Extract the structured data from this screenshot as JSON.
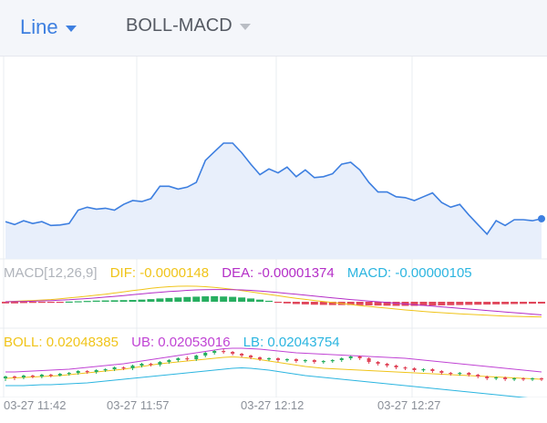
{
  "toolbar": {
    "chart_type": "Line",
    "indicator": "BOLL-MACD"
  },
  "colors": {
    "price_line": "#3d7fe0",
    "price_fill": "#e8effb",
    "dif": "#f0c419",
    "dea": "#b42ec7",
    "macd": "#2bb5e0",
    "up": "#27ae60",
    "down": "#e0475b",
    "ub": "#c043d4",
    "lb": "#2bb5e0",
    "boll": "#f0c419",
    "grid": "#e9ecf1",
    "label": "#8a8f98"
  },
  "macd_legend": {
    "name": "MACD[12,26,9]",
    "dif": "DIF: -0.0000148",
    "dea": "DEA: -0.00001374",
    "macd": "MACD: -0.00000105"
  },
  "boll_legend": {
    "boll": "BOLL: 0.02048385",
    "ub": "UB: 0.02053016",
    "lb": "LB: 0.02043754"
  },
  "x_labels": [
    "03-27 11:42",
    "03-27 11:57",
    "03-27 12:12",
    "03-27 12:27"
  ],
  "chart_data": {
    "type": "line",
    "x_ticks": [
      "03-27 11:42",
      "03-27 11:57",
      "03-27 12:12",
      "03-27 12:27"
    ],
    "price": [
      18,
      15,
      19,
      16,
      18,
      14,
      14.5,
      16,
      30,
      33,
      31,
      32,
      30,
      36,
      40,
      39,
      42,
      55,
      55,
      52,
      54,
      59,
      82,
      91,
      100,
      100,
      90,
      78,
      67,
      73,
      69,
      75,
      65,
      72,
      64,
      65,
      68,
      78,
      80,
      72,
      59,
      49,
      49,
      44,
      43,
      40,
      44,
      48,
      38,
      33,
      36,
      25,
      15,
      5,
      19,
      14,
      20,
      20,
      19,
      21
    ],
    "macd_hist": [
      -1,
      -1,
      -0.8,
      -0.7,
      -0.6,
      -0.5,
      -0.3,
      0.1,
      0.3,
      0.5,
      0.7,
      0.8,
      0.9,
      1.0,
      1.1,
      1.3,
      1.6,
      2.0,
      2.3,
      2.6,
      2.9,
      3.1,
      3.3,
      3.4,
      3.2,
      3.0,
      2.6,
      2.0,
      1.3,
      0.6,
      -0.4,
      -1.0,
      -1.4,
      -1.6,
      -1.8,
      -1.9,
      -2.0,
      -2.0,
      -2.0,
      -2.1,
      -2.2,
      -2.3,
      -2.4,
      -2.5,
      -2.5,
      -2.5,
      -2.4,
      -2.3,
      -2.2,
      -2.1,
      -2.0,
      -1.9,
      -1.8,
      -1.7,
      -1.6,
      -1.5,
      -1.4,
      -1.3,
      -1.2,
      -1.1
    ],
    "dif": [
      0,
      0.3,
      0.6,
      0.9,
      1.2,
      1.5,
      2.0,
      2.6,
      3.2,
      3.8,
      4.5,
      5.2,
      6.0,
      6.8,
      7.6,
      8.4,
      9.2,
      9.8,
      10.3,
      10.6,
      10.7,
      10.6,
      10.3,
      9.8,
      9.2,
      8.5,
      7.7,
      6.8,
      5.9,
      5.0,
      4.1,
      3.2,
      2.4,
      1.6,
      0.9,
      0.2,
      -0.5,
      -1.2,
      -1.9,
      -2.6,
      -3.2,
      -3.8,
      -4.4,
      -5.0,
      -5.6,
      -6.1,
      -6.6,
      -7.1,
      -7.5,
      -7.9,
      -8.3,
      -8.6,
      -8.9,
      -9.2,
      -9.5,
      -9.8,
      -10.0,
      -10.2,
      -10.3,
      -10.4
    ],
    "dea": [
      0,
      0.1,
      0.2,
      0.4,
      0.6,
      0.8,
      1.1,
      1.4,
      1.8,
      2.2,
      2.7,
      3.2,
      3.7,
      4.2,
      4.8,
      5.4,
      6.0,
      6.5,
      7.0,
      7.4,
      7.8,
      8.1,
      8.3,
      8.4,
      8.4,
      8.3,
      8.1,
      7.8,
      7.4,
      6.9,
      6.3,
      5.7,
      5.1,
      4.5,
      3.9,
      3.3,
      2.7,
      2.1,
      1.5,
      1.0,
      0.5,
      0.0,
      -0.5,
      -1.0,
      -1.5,
      -2.0,
      -2.5,
      -3.0,
      -3.5,
      -4.0,
      -4.5,
      -5.0,
      -5.5,
      -6.0,
      -6.5,
      -7.0,
      -7.5,
      -8.0,
      -8.5,
      -9.0
    ],
    "boll_mid": [
      10,
      10.5,
      11,
      11.5,
      12,
      12.5,
      13,
      14,
      15,
      16,
      17,
      18,
      19,
      20,
      21.5,
      23,
      24.5,
      26,
      27,
      28,
      29,
      30,
      31,
      32,
      33,
      33.5,
      33,
      32,
      30.5,
      29,
      27.5,
      26,
      24.5,
      23,
      22,
      21,
      20.5,
      20,
      19.5,
      19,
      18.5,
      18,
      17.5,
      17,
      16.5,
      16,
      15.5,
      15,
      14.5,
      14,
      13.5,
      13,
      12.5,
      12,
      11.5,
      11,
      10.5,
      10,
      9.5,
      9
    ],
    "boll_ub": [
      17,
      17,
      17.5,
      18,
      18.5,
      19,
      19.5,
      20,
      21,
      22,
      23,
      24,
      25,
      26,
      27.5,
      29,
      30.5,
      32,
      33.5,
      35,
      36.5,
      38,
      39.5,
      41,
      42.5,
      43,
      43,
      42.5,
      42,
      41,
      40,
      39,
      38,
      37.5,
      37,
      36.5,
      36,
      35.5,
      35,
      34.5,
      34,
      33.5,
      33,
      32.5,
      32,
      31,
      30,
      29,
      28,
      27,
      26,
      25,
      24,
      23,
      22,
      21,
      20,
      19,
      18,
      17
    ],
    "boll_lb": [
      2,
      2,
      2,
      2.5,
      3,
      3,
      3.5,
      4,
      4.5,
      5,
      6,
      7,
      8,
      9,
      10,
      11,
      12,
      13,
      14,
      15,
      16,
      17,
      18,
      19,
      20,
      21,
      21.5,
      21,
      20,
      19,
      17.5,
      16,
      14.5,
      13,
      12,
      11,
      10,
      9,
      8,
      7,
      6,
      5,
      4,
      3,
      2,
      1,
      0,
      -1,
      -2,
      -3,
      -4,
      -5,
      -6,
      -7,
      -8,
      -9,
      -10,
      -11,
      -12,
      -13
    ],
    "candles": [
      [
        10,
        12,
        8,
        13,
        7
      ],
      [
        12,
        11,
        9,
        13,
        8
      ],
      [
        11,
        13,
        10,
        14,
        9
      ],
      [
        13,
        12,
        11,
        14,
        10
      ],
      [
        12,
        14,
        11,
        15,
        10
      ],
      [
        14,
        13,
        12,
        15,
        11
      ],
      [
        13,
        15,
        12,
        16,
        12
      ],
      [
        15,
        16,
        14,
        17,
        13
      ],
      [
        16,
        18,
        15,
        19,
        14
      ],
      [
        18,
        17,
        16,
        19,
        15
      ],
      [
        17,
        19,
        16,
        20,
        15
      ],
      [
        19,
        20,
        18,
        21,
        17
      ],
      [
        20,
        22,
        19,
        23,
        18
      ],
      [
        22,
        21,
        20,
        23,
        19
      ],
      [
        21,
        24,
        20,
        25,
        19
      ],
      [
        24,
        26,
        23,
        27,
        22
      ],
      [
        26,
        25,
        24,
        27,
        23
      ],
      [
        25,
        28,
        24,
        29,
        23
      ],
      [
        28,
        30,
        27,
        31,
        26
      ],
      [
        30,
        32,
        29,
        33,
        28
      ],
      [
        32,
        31,
        30,
        34,
        29
      ],
      [
        31,
        35,
        30,
        36,
        29
      ],
      [
        35,
        38,
        34,
        39,
        33
      ],
      [
        38,
        40,
        37,
        41,
        36
      ],
      [
        40,
        39,
        38,
        42,
        37
      ],
      [
        39,
        37,
        36,
        40,
        35
      ],
      [
        37,
        35,
        34,
        38,
        33
      ],
      [
        35,
        33,
        32,
        36,
        31
      ],
      [
        33,
        31,
        30,
        34,
        29
      ],
      [
        31,
        32,
        30,
        33,
        29
      ],
      [
        32,
        30,
        29,
        33,
        28
      ],
      [
        30,
        31,
        29,
        32,
        28
      ],
      [
        31,
        29,
        28,
        32,
        27
      ],
      [
        29,
        30,
        28,
        31,
        27
      ],
      [
        30,
        28,
        27,
        31,
        26
      ],
      [
        28,
        29,
        27,
        30,
        26
      ],
      [
        29,
        30,
        28,
        31,
        27
      ],
      [
        30,
        32,
        29,
        33,
        28
      ],
      [
        32,
        34,
        31,
        35,
        30
      ],
      [
        34,
        32,
        31,
        35,
        30
      ],
      [
        32,
        28,
        27,
        33,
        26
      ],
      [
        28,
        26,
        25,
        29,
        24
      ],
      [
        26,
        24,
        23,
        27,
        22
      ],
      [
        24,
        22,
        21,
        25,
        20
      ],
      [
        22,
        21,
        20,
        23,
        19
      ],
      [
        21,
        19,
        18,
        22,
        17
      ],
      [
        19,
        20,
        18,
        21,
        17
      ],
      [
        20,
        18,
        17,
        21,
        16
      ],
      [
        18,
        16,
        15,
        19,
        14
      ],
      [
        16,
        15,
        14,
        17,
        13
      ],
      [
        15,
        16,
        14,
        17,
        13
      ],
      [
        16,
        14,
        13,
        17,
        12
      ],
      [
        14,
        12,
        11,
        15,
        10
      ],
      [
        12,
        10,
        9,
        13,
        8
      ],
      [
        10,
        11,
        9,
        12,
        8
      ],
      [
        11,
        9,
        8,
        12,
        7
      ],
      [
        9,
        10,
        8,
        11,
        7
      ],
      [
        10,
        9,
        8,
        11,
        7
      ],
      [
        9,
        10,
        8,
        11,
        7
      ],
      [
        10,
        9,
        8,
        11,
        7
      ]
    ]
  }
}
